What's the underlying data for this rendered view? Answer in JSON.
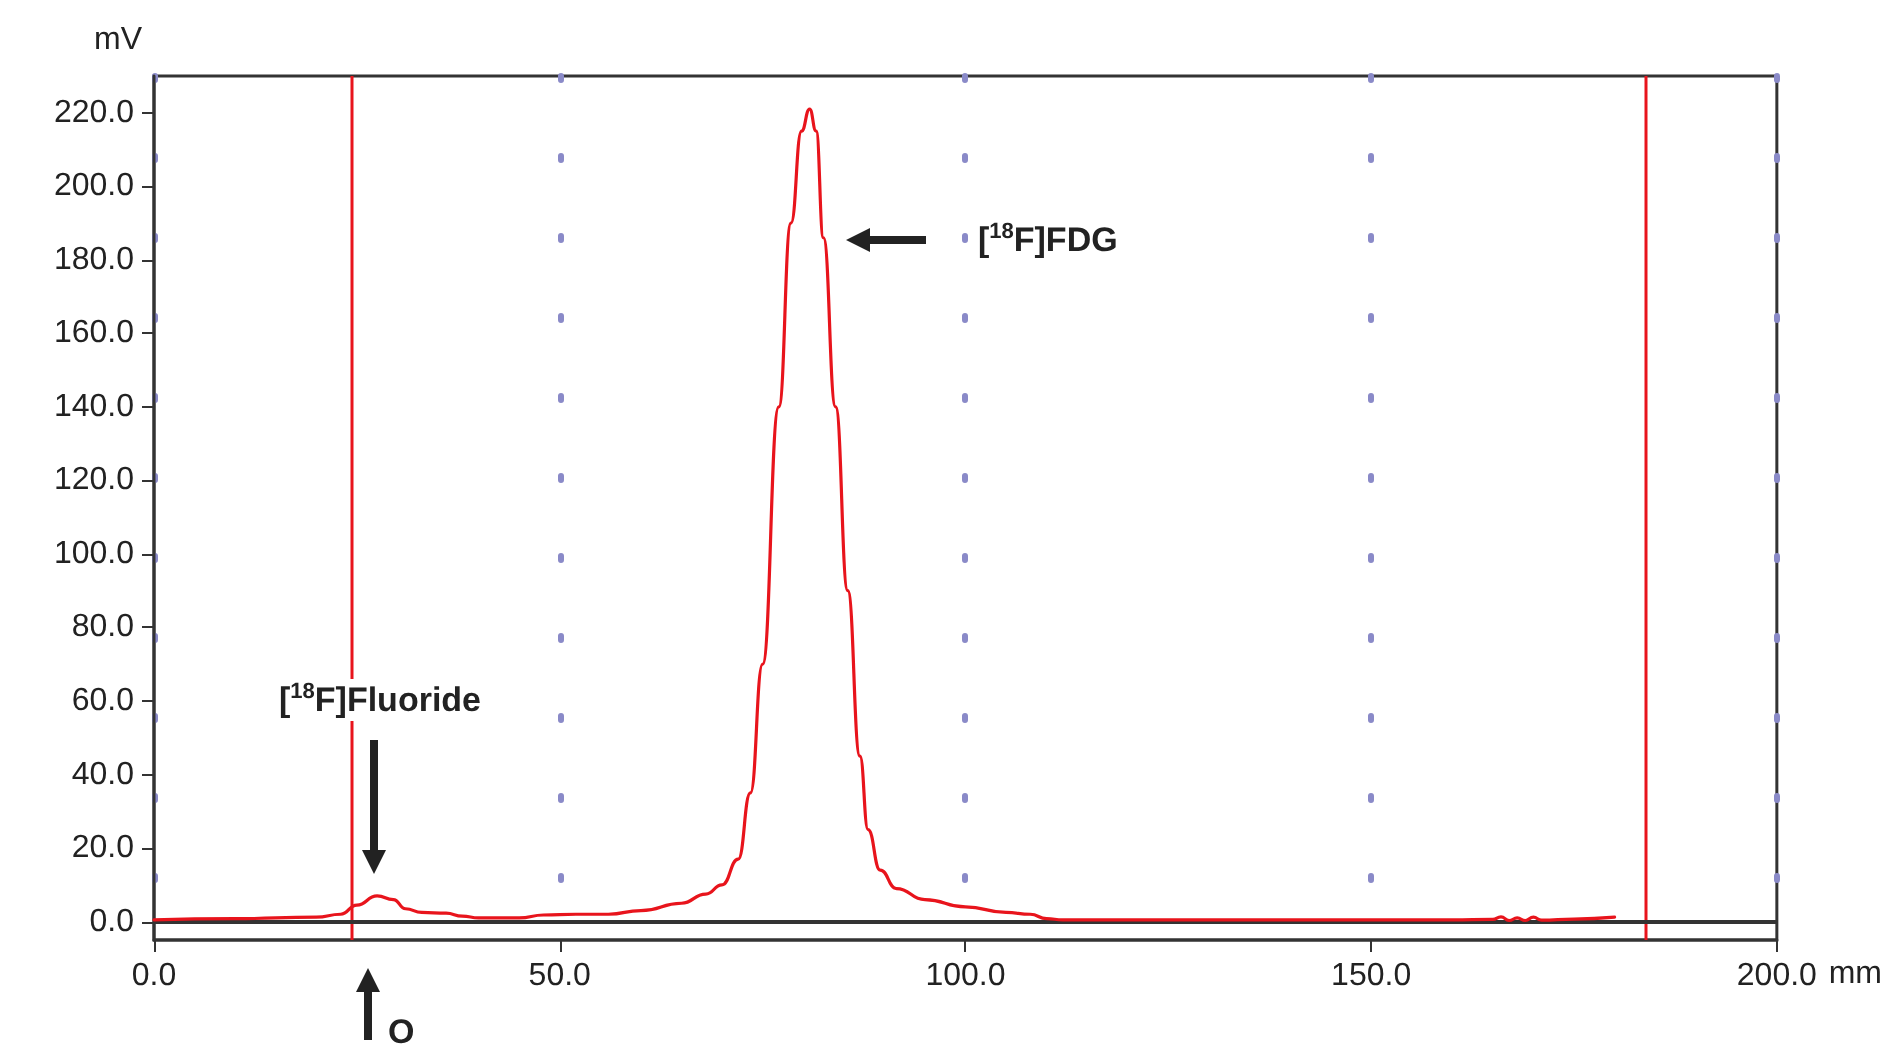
{
  "chart_data": {
    "type": "line",
    "xlabel": "mm",
    "ylabel": "mV",
    "xlim": [
      0,
      200
    ],
    "xticks": [
      {
        "value": 0,
        "label": "0.0"
      },
      {
        "value": 50,
        "label": "50.0"
      },
      {
        "value": 100,
        "label": "100.0"
      },
      {
        "value": 150,
        "label": "150.0"
      },
      {
        "value": 200,
        "label": "200.0"
      }
    ],
    "ylim": [
      -5,
      230
    ],
    "yticks": [
      {
        "value": 0,
        "label": "0.0"
      },
      {
        "value": 20,
        "label": "20.0"
      },
      {
        "value": 40,
        "label": "40.0"
      },
      {
        "value": 60,
        "label": "60.0"
      },
      {
        "value": 80,
        "label": "80.0"
      },
      {
        "value": 100,
        "label": "100.0"
      },
      {
        "value": 120,
        "label": "120.0"
      },
      {
        "value": 140,
        "label": "140.0"
      },
      {
        "value": 160,
        "label": "160.0"
      },
      {
        "value": 180,
        "label": "180.0"
      },
      {
        "value": 200,
        "label": "200.0"
      },
      {
        "value": 220,
        "label": "220.0"
      }
    ],
    "grid": "x",
    "marker": "none",
    "line_style": "solid",
    "series": [
      {
        "color": "#e8141c",
        "x": [
          0,
          10,
          20,
          23,
          25,
          27.5,
          29.5,
          31,
          33,
          36,
          38,
          40,
          45,
          48,
          52,
          56,
          60,
          65,
          68,
          70,
          72,
          73.5,
          75,
          77,
          78.5,
          79.8,
          80.8,
          81.6,
          82.5,
          84,
          85.5,
          87,
          88,
          89.5,
          91.5,
          95,
          100,
          105,
          108,
          110,
          112,
          130,
          150,
          160,
          165,
          166,
          167,
          168,
          169,
          170,
          171,
          175,
          180
        ],
        "values": [
          0.5,
          0.8,
          1.2,
          2,
          4.5,
          7,
          6,
          3.5,
          2.5,
          2.3,
          1.5,
          1,
          1,
          1.8,
          2,
          2,
          3,
          5,
          7.5,
          10,
          17,
          35,
          70,
          140,
          190,
          215,
          221,
          215,
          186,
          140,
          90,
          45,
          25,
          14,
          9,
          6,
          4,
          2.5,
          2,
          0.8,
          0.5,
          0.5,
          0.5,
          0.5,
          0.6,
          1.3,
          0.3,
          1,
          0.3,
          1.2,
          0.4,
          0.7,
          1.2
        ]
      }
    ],
    "ref_lines": [
      {
        "axis": "x",
        "value": 24.4,
        "color": "#e8141c"
      },
      {
        "axis": "x",
        "value": 183.8,
        "color": "#e8141c"
      },
      {
        "axis": "y",
        "value": 0,
        "color": "#333333"
      }
    ],
    "annotations": [
      "[$^{18}$F]Fluoride",
      "[$^{18}$F]FDG",
      "O"
    ]
  }
}
